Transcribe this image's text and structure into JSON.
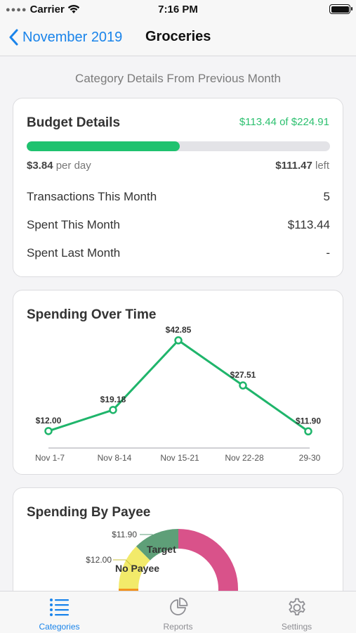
{
  "status_bar": {
    "carrier": "Carrier",
    "time": "7:16 PM"
  },
  "nav": {
    "back_label": "November 2019",
    "title": "Groceries"
  },
  "subtitle": "Category Details From Previous Month",
  "budget": {
    "title": "Budget Details",
    "spent_of_total": "$113.44 of $224.91",
    "progress_fraction": 0.504,
    "per_day_amount": "$3.84",
    "per_day_suffix": "per day",
    "left_amount": "$111.47",
    "left_suffix": "left",
    "rows": [
      {
        "label": "Transactions This Month",
        "value": "5"
      },
      {
        "label": "Spent This Month",
        "value": "$113.44"
      },
      {
        "label": "Spent Last Month",
        "value": "-"
      }
    ]
  },
  "spending_over_time": {
    "title": "Spending Over Time"
  },
  "chart_data": [
    {
      "type": "line",
      "title": "Spending Over Time",
      "categories": [
        "Nov 1-7",
        "Nov 8-14",
        "Nov 15-21",
        "Nov 22-28",
        "29-30"
      ],
      "values": [
        12.0,
        19.18,
        42.85,
        27.51,
        11.9
      ],
      "data_labels": [
        "$12.00",
        "$19.18",
        "$42.85",
        "$27.51",
        "$11.90"
      ],
      "xlabel": "",
      "ylabel": "",
      "ylim": [
        0,
        50
      ],
      "grid": false,
      "color": "#1fb56b"
    },
    {
      "type": "pie",
      "title": "Spending By Payee",
      "slices": [
        {
          "label": "Target",
          "value_label": "$11.90",
          "color": "#5e9f78"
        },
        {
          "label": "No Payee",
          "value_label": "$12.00",
          "color": "#f2ea6a"
        },
        {
          "label": "",
          "value_label": "",
          "color": "#f39320"
        },
        {
          "label": "",
          "value_label": "",
          "color": "#d9528a"
        }
      ]
    }
  ],
  "spending_by_payee": {
    "title": "Spending By Payee",
    "callouts": [
      {
        "value": "$11.90",
        "name": "Target"
      },
      {
        "value": "$12.00",
        "name": "No Payee"
      }
    ]
  },
  "tabs": [
    {
      "label": "Categories",
      "icon": "list-icon",
      "active": true
    },
    {
      "label": "Reports",
      "icon": "pie-chart-icon",
      "active": false
    },
    {
      "label": "Settings",
      "icon": "gear-icon",
      "active": false
    }
  ],
  "colors": {
    "accent": "#1a84ea",
    "positive": "#2cc06f",
    "line": "#1fb56b"
  }
}
